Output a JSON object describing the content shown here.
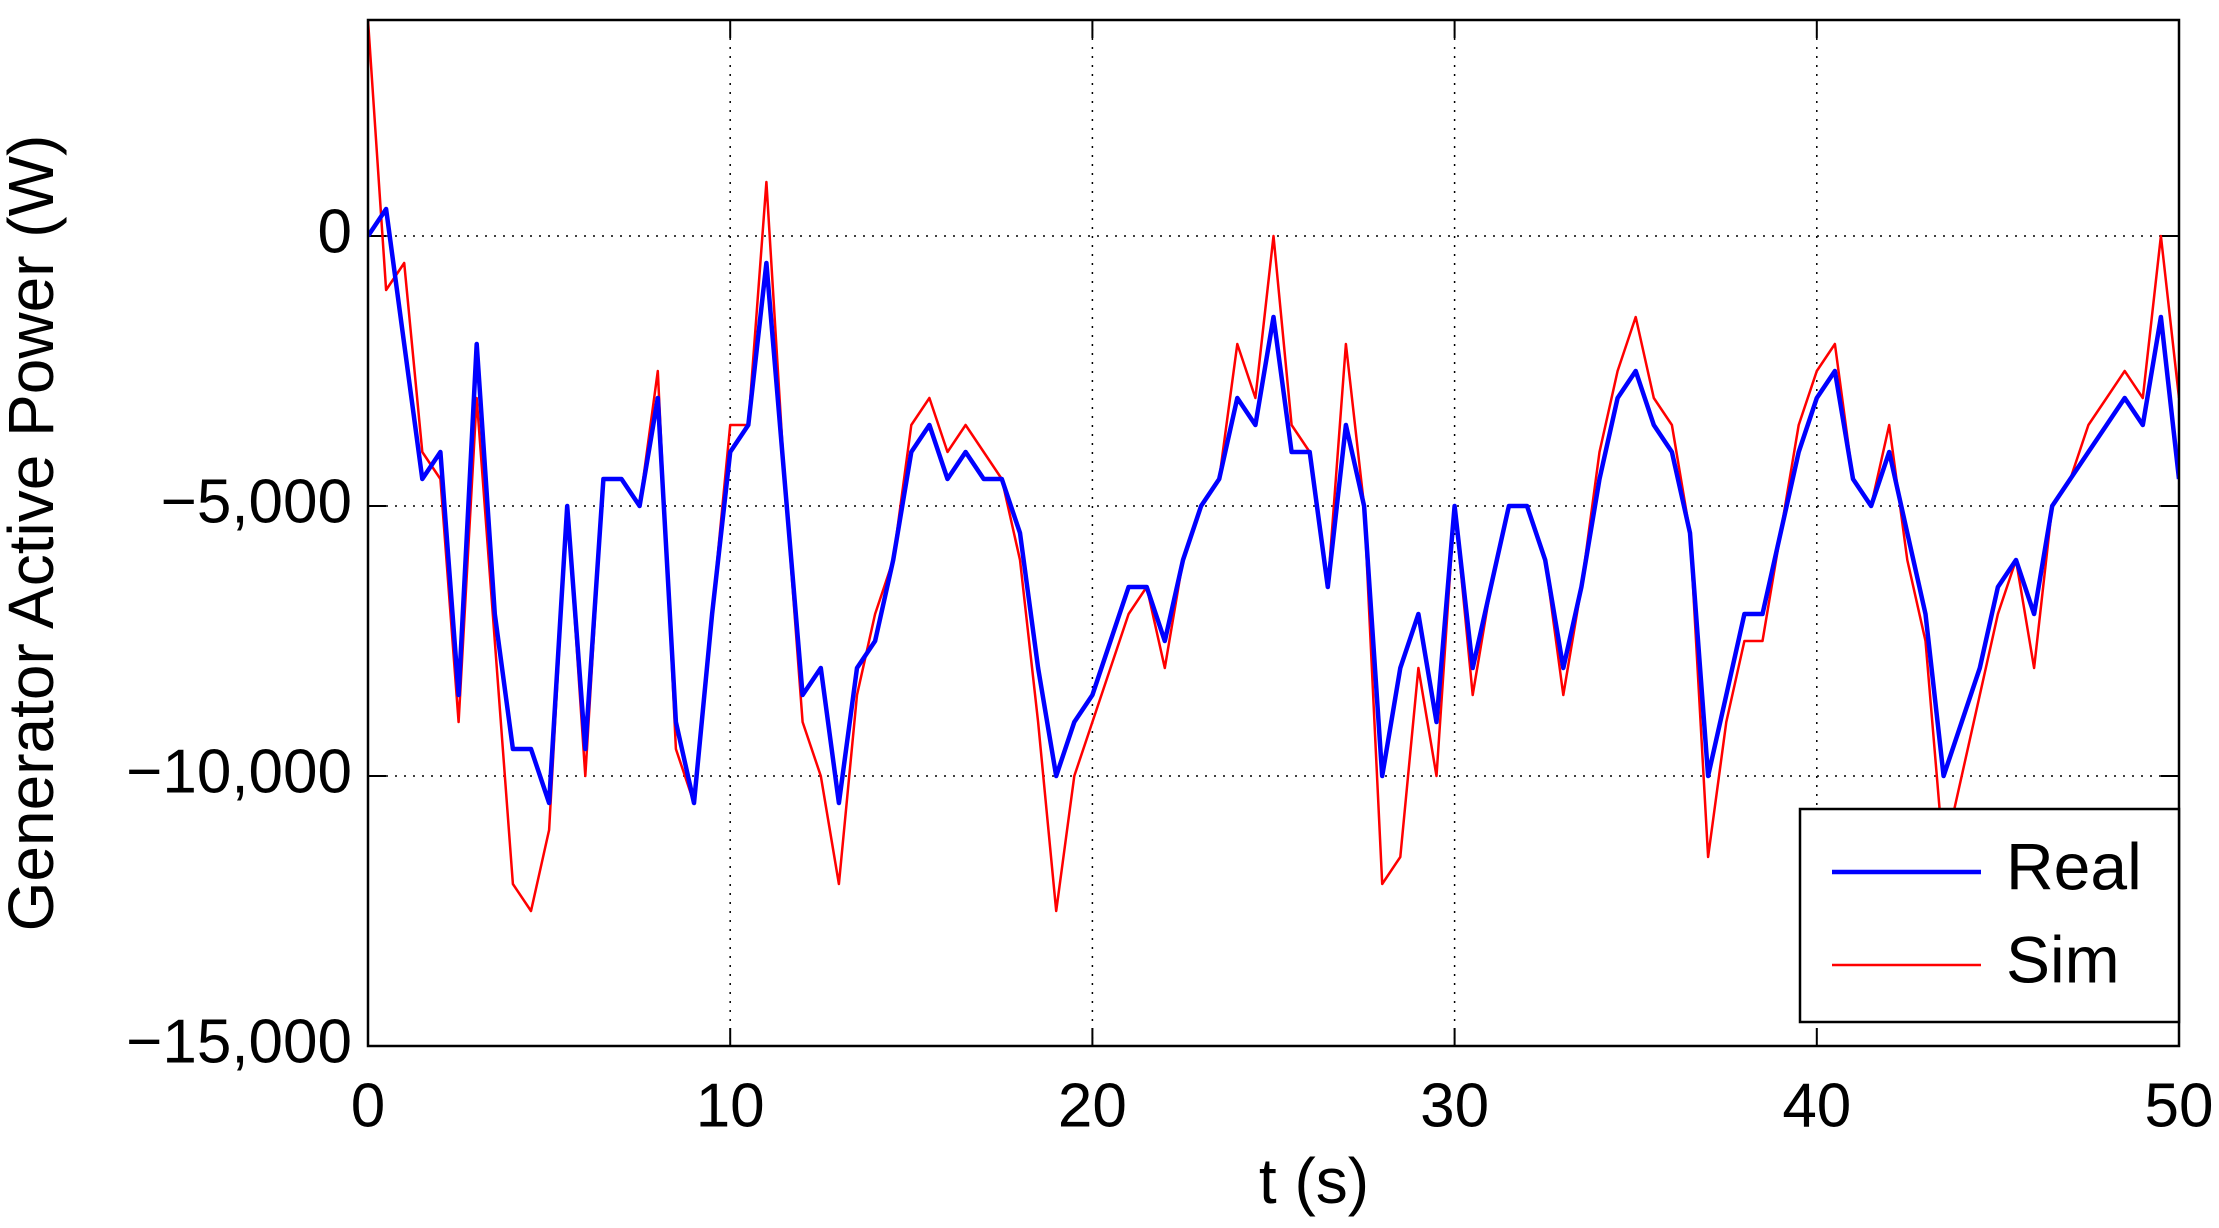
{
  "chart_data": {
    "type": "line",
    "xlabel": "t (s)",
    "ylabel": "Generator Active Power (W)",
    "x": [
      0,
      0.5,
      1,
      1.5,
      2,
      2.5,
      3,
      3.5,
      4,
      4.5,
      5,
      5.5,
      6,
      6.5,
      7,
      7.5,
      8,
      8.5,
      9,
      9.5,
      10,
      10.5,
      11,
      11.5,
      12,
      12.5,
      13,
      13.5,
      14,
      14.5,
      15,
      15.5,
      16,
      16.5,
      17,
      17.5,
      18,
      18.5,
      19,
      19.5,
      20,
      20.5,
      21,
      21.5,
      22,
      22.5,
      23,
      23.5,
      24,
      24.5,
      25,
      25.5,
      26,
      26.5,
      27,
      27.5,
      28,
      28.5,
      29,
      29.5,
      30,
      30.5,
      31,
      31.5,
      32,
      32.5,
      33,
      33.5,
      34,
      34.5,
      35,
      35.5,
      36,
      36.5,
      37,
      37.5,
      38,
      38.5,
      39,
      39.5,
      40,
      40.5,
      41,
      41.5,
      42,
      42.5,
      43,
      43.5,
      44,
      44.5,
      45,
      45.5,
      46,
      46.5,
      47,
      47.5,
      48,
      48.5,
      49,
      49.5,
      50
    ],
    "series": [
      {
        "name": "Real",
        "color": "#0000ff",
        "values": [
          0,
          500,
          -2000,
          -4500,
          -4000,
          -8500,
          -2000,
          -7000,
          -9500,
          -9500,
          -10500,
          -5000,
          -9500,
          -4500,
          -4500,
          -5000,
          -3000,
          -9000,
          -10500,
          -7000,
          -4000,
          -3500,
          -500,
          -4500,
          -8500,
          -8000,
          -10500,
          -8000,
          -7500,
          -6000,
          -4000,
          -3500,
          -4500,
          -4000,
          -4500,
          -4500,
          -5500,
          -8000,
          -10000,
          -9000,
          -8500,
          -7500,
          -6500,
          -6500,
          -7500,
          -6000,
          -5000,
          -4500,
          -3000,
          -3500,
          -1500,
          -4000,
          -4000,
          -6500,
          -3500,
          -5000,
          -10000,
          -8000,
          -7000,
          -9000,
          -5000,
          -8000,
          -6500,
          -5000,
          -5000,
          -6000,
          -8000,
          -6500,
          -4500,
          -3000,
          -2500,
          -3500,
          -4000,
          -5500,
          -10000,
          -8500,
          -7000,
          -7000,
          -5500,
          -4000,
          -3000,
          -2500,
          -4500,
          -5000,
          -4000,
          -5500,
          -7000,
          -10000,
          -9000,
          -8000,
          -6500,
          -6000,
          -7000,
          -5000,
          -4500,
          -4000,
          -3500,
          -3000,
          -3500,
          -1500,
          -4500
        ]
      },
      {
        "name": "Sim",
        "color": "#ff0000",
        "values": [
          4000,
          -1000,
          -500,
          -4000,
          -4500,
          -9000,
          -3000,
          -7500,
          -12000,
          -12500,
          -11000,
          -5000,
          -10000,
          -4500,
          -4500,
          -5000,
          -2500,
          -9500,
          -10500,
          -7000,
          -3500,
          -3500,
          1000,
          -4500,
          -9000,
          -10000,
          -12000,
          -8500,
          -7000,
          -6000,
          -3500,
          -3000,
          -4000,
          -3500,
          -4000,
          -4500,
          -6000,
          -9000,
          -12500,
          -10000,
          -9000,
          -8000,
          -7000,
          -6500,
          -8000,
          -6000,
          -5000,
          -4500,
          -2000,
          -3000,
          0,
          -3500,
          -4000,
          -6500,
          -2000,
          -5000,
          -12000,
          -11500,
          -8000,
          -10000,
          -5000,
          -8500,
          -6500,
          -5000,
          -5000,
          -6000,
          -8500,
          -6500,
          -4000,
          -2500,
          -1500,
          -3000,
          -3500,
          -5500,
          -11500,
          -9000,
          -7500,
          -7500,
          -5500,
          -3500,
          -2500,
          -2000,
          -4500,
          -5000,
          -3500,
          -6000,
          -7500,
          -11500,
          -10000,
          -8500,
          -7000,
          -6000,
          -8000,
          -5000,
          -4500,
          -3500,
          -3000,
          -2500,
          -3000,
          0,
          -3000
        ]
      }
    ],
    "xlim": [
      0,
      50
    ],
    "xticks": [
      0,
      10,
      20,
      30,
      40,
      50
    ],
    "ylim": [
      -15000,
      4000
    ],
    "yticks": [
      {
        "value": -15000,
        "label": "−15,000"
      },
      {
        "value": -10000,
        "label": "−10,000"
      },
      {
        "value": -5000,
        "label": "−5,000"
      },
      0
    ],
    "grid": true,
    "legend": "lower right"
  }
}
